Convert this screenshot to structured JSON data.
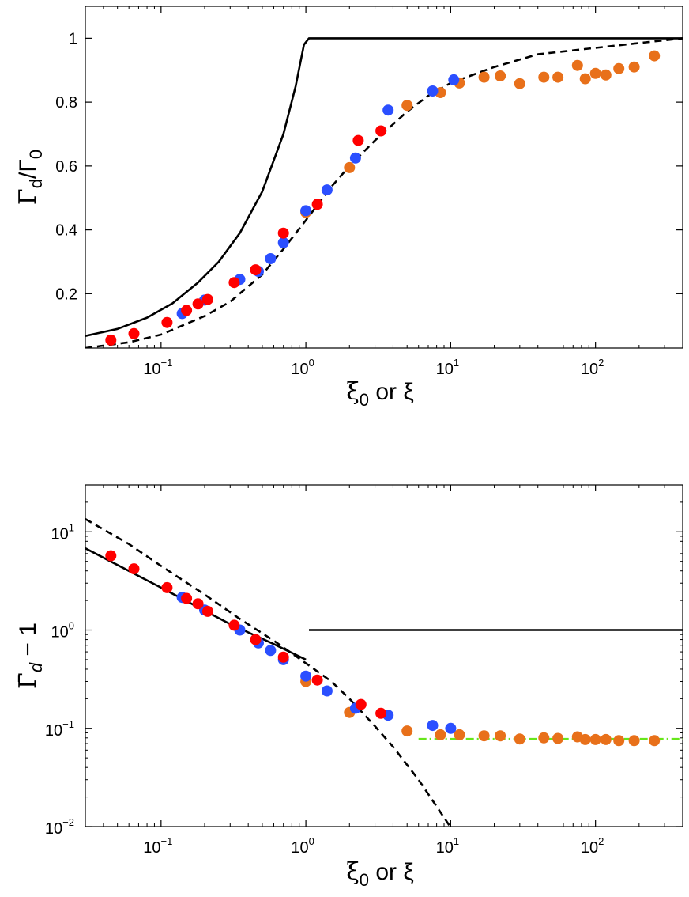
{
  "colors": {
    "red": "#ff0000",
    "blue": "#2b4fff",
    "orange": "#e8701a",
    "green": "#66e61a",
    "black": "#000000"
  },
  "chart_data": [
    {
      "type": "scatter",
      "panel": "top",
      "xscale": "log",
      "yscale": "linear",
      "xlim": [
        0.03,
        400
      ],
      "ylim": [
        0.03,
        1.1
      ],
      "grid": false,
      "legend": "none",
      "xlabel": {
        "main": "ξ",
        "sub": "0",
        "tail": " or ξ"
      },
      "ylabel": {
        "main": "Γ",
        "sub": "d",
        "mid": "/Γ",
        "sub2": "0"
      },
      "xticks": [
        {
          "value": 0.1,
          "base": "10",
          "exp": "−1"
        },
        {
          "value": 1,
          "base": "10",
          "exp": "0"
        },
        {
          "value": 10,
          "base": "10",
          "exp": "1"
        },
        {
          "value": 100,
          "base": "10",
          "exp": "2"
        }
      ],
      "yticks": [
        {
          "value": 0.2,
          "label": "0.2"
        },
        {
          "value": 0.4,
          "label": "0.4"
        },
        {
          "value": 0.6,
          "label": "0.6"
        },
        {
          "value": 0.8,
          "label": "0.8"
        },
        {
          "value": 1.0,
          "label": "1"
        }
      ],
      "lines": [
        {
          "name": "solid",
          "style": "solid",
          "color": "#000000",
          "points": [
            [
              0.03,
              0.068
            ],
            [
              0.05,
              0.09
            ],
            [
              0.08,
              0.125
            ],
            [
              0.12,
              0.17
            ],
            [
              0.18,
              0.235
            ],
            [
              0.25,
              0.3
            ],
            [
              0.35,
              0.39
            ],
            [
              0.5,
              0.52
            ],
            [
              0.7,
              0.7
            ],
            [
              0.85,
              0.85
            ],
            [
              0.97,
              0.98
            ],
            [
              1.05,
              1.0
            ],
            [
              400,
              1.0
            ]
          ]
        },
        {
          "name": "dashed",
          "style": "dashed",
          "color": "#000000",
          "points": [
            [
              0.03,
              0.03
            ],
            [
              0.06,
              0.048
            ],
            [
              0.1,
              0.072
            ],
            [
              0.2,
              0.13
            ],
            [
              0.3,
              0.175
            ],
            [
              0.5,
              0.26
            ],
            [
              0.7,
              0.34
            ],
            [
              1.0,
              0.43
            ],
            [
              1.5,
              0.535
            ],
            [
              2.0,
              0.6
            ],
            [
              3.0,
              0.68
            ],
            [
              5.0,
              0.77
            ],
            [
              7.0,
              0.82
            ],
            [
              10.0,
              0.86
            ],
            [
              20.0,
              0.91
            ],
            [
              40.0,
              0.95
            ],
            [
              100.0,
              0.97
            ],
            [
              200.0,
              0.985
            ],
            [
              400.0,
              1.0
            ]
          ]
        }
      ],
      "series": [
        {
          "name": "red",
          "color": "#ff0000",
          "points": [
            [
              0.045,
              0.055
            ],
            [
              0.065,
              0.075
            ],
            [
              0.11,
              0.11
            ],
            [
              0.15,
              0.148
            ],
            [
              0.18,
              0.168
            ],
            [
              0.21,
              0.182
            ],
            [
              0.32,
              0.235
            ],
            [
              0.45,
              0.275
            ],
            [
              0.7,
              0.39
            ],
            [
              1.2,
              0.48
            ],
            [
              2.3,
              0.68
            ],
            [
              3.3,
              0.71
            ]
          ]
        },
        {
          "name": "blue",
          "color": "#2b4fff",
          "points": [
            [
              0.14,
              0.138
            ],
            [
              0.2,
              0.18
            ],
            [
              0.35,
              0.245
            ],
            [
              0.47,
              0.27
            ],
            [
              0.57,
              0.31
            ],
            [
              0.7,
              0.36
            ],
            [
              1.0,
              0.46
            ],
            [
              1.4,
              0.525
            ],
            [
              2.2,
              0.625
            ],
            [
              3.7,
              0.775
            ],
            [
              7.5,
              0.835
            ],
            [
              10.5,
              0.87
            ]
          ]
        },
        {
          "name": "orange",
          "color": "#e8701a",
          "points": [
            [
              1.0,
              0.455
            ],
            [
              2.0,
              0.595
            ],
            [
              5.0,
              0.79
            ],
            [
              8.5,
              0.83
            ],
            [
              11.5,
              0.86
            ],
            [
              17,
              0.878
            ],
            [
              22,
              0.882
            ],
            [
              30,
              0.858
            ],
            [
              44,
              0.878
            ],
            [
              55,
              0.878
            ],
            [
              75,
              0.915
            ],
            [
              85,
              0.873
            ],
            [
              100,
              0.89
            ],
            [
              118,
              0.885
            ],
            [
              145,
              0.905
            ],
            [
              185,
              0.91
            ],
            [
              255,
              0.945
            ]
          ]
        }
      ]
    },
    {
      "type": "scatter",
      "panel": "bottom",
      "xscale": "log",
      "yscale": "log",
      "xlim": [
        0.03,
        400
      ],
      "ylim": [
        0.01,
        30
      ],
      "grid": false,
      "legend": "none",
      "xlabel": {
        "main": "ξ",
        "sub": "0",
        "tail": " or ξ"
      },
      "ylabel": {
        "main": "Γ̄",
        "sub": "d",
        "tail": " − 1"
      },
      "xticks": [
        {
          "value": 0.1,
          "base": "10",
          "exp": "−1"
        },
        {
          "value": 1,
          "base": "10",
          "exp": "0"
        },
        {
          "value": 10,
          "base": "10",
          "exp": "1"
        },
        {
          "value": 100,
          "base": "10",
          "exp": "2"
        }
      ],
      "yticks": [
        {
          "value": 0.01,
          "base": "10",
          "exp": "−2"
        },
        {
          "value": 0.1,
          "base": "10",
          "exp": "−1"
        },
        {
          "value": 1,
          "base": "10",
          "exp": "0"
        },
        {
          "value": 10,
          "base": "10",
          "exp": "1"
        }
      ],
      "lines": [
        {
          "name": "solid-left",
          "style": "solid",
          "color": "#000000",
          "points": [
            [
              0.03,
              6.8
            ],
            [
              0.1,
              2.7
            ],
            [
              0.3,
              1.15
            ],
            [
              0.6,
              0.72
            ],
            [
              1.0,
              0.5
            ]
          ]
        },
        {
          "name": "solid-right",
          "style": "solid",
          "color": "#000000",
          "points": [
            [
              1.05,
              1.0
            ],
            [
              400,
              1.0
            ]
          ]
        },
        {
          "name": "dashed",
          "style": "dashed",
          "color": "#000000",
          "points": [
            [
              0.03,
              13.5
            ],
            [
              0.06,
              7.5
            ],
            [
              0.1,
              4.5
            ],
            [
              0.2,
              2.3
            ],
            [
              0.35,
              1.3
            ],
            [
              0.6,
              0.78
            ],
            [
              1.0,
              0.46
            ],
            [
              1.5,
              0.3
            ],
            [
              2.0,
              0.2
            ],
            [
              3.0,
              0.105
            ],
            [
              4.0,
              0.065
            ],
            [
              6.0,
              0.03
            ],
            [
              8.0,
              0.016
            ],
            [
              10.0,
              0.0098
            ]
          ]
        },
        {
          "name": "green-dashdot",
          "style": "dashdot",
          "color": "#66e61a",
          "points": [
            [
              6.0,
              0.078
            ],
            [
              400,
              0.078
            ]
          ]
        }
      ],
      "series": [
        {
          "name": "red",
          "color": "#ff0000",
          "points": [
            [
              0.045,
              5.7
            ],
            [
              0.065,
              4.2
            ],
            [
              0.11,
              2.7
            ],
            [
              0.15,
              2.1
            ],
            [
              0.18,
              1.85
            ],
            [
              0.21,
              1.55
            ],
            [
              0.32,
              1.12
            ],
            [
              0.45,
              0.8
            ],
            [
              0.7,
              0.53
            ],
            [
              1.2,
              0.31
            ],
            [
              2.4,
              0.175
            ],
            [
              3.3,
              0.142
            ]
          ]
        },
        {
          "name": "blue",
          "color": "#2b4fff",
          "points": [
            [
              0.14,
              2.15
            ],
            [
              0.2,
              1.6
            ],
            [
              0.35,
              1.0
            ],
            [
              0.47,
              0.74
            ],
            [
              0.57,
              0.62
            ],
            [
              0.7,
              0.5
            ],
            [
              1.0,
              0.34
            ],
            [
              1.4,
              0.24
            ],
            [
              2.2,
              0.16
            ],
            [
              3.7,
              0.136
            ],
            [
              7.5,
              0.107
            ],
            [
              10.0,
              0.1
            ]
          ]
        },
        {
          "name": "orange",
          "color": "#e8701a",
          "points": [
            [
              1.0,
              0.3
            ],
            [
              2.0,
              0.145
            ],
            [
              5.0,
              0.094
            ],
            [
              8.5,
              0.086
            ],
            [
              11.5,
              0.086
            ],
            [
              17,
              0.084
            ],
            [
              22,
              0.084
            ],
            [
              30,
              0.078
            ],
            [
              44,
              0.08
            ],
            [
              55,
              0.079
            ],
            [
              75,
              0.082
            ],
            [
              85,
              0.077
            ],
            [
              100,
              0.077
            ],
            [
              118,
              0.077
            ],
            [
              145,
              0.075
            ],
            [
              185,
              0.075
            ],
            [
              255,
              0.075
            ]
          ]
        }
      ]
    }
  ]
}
